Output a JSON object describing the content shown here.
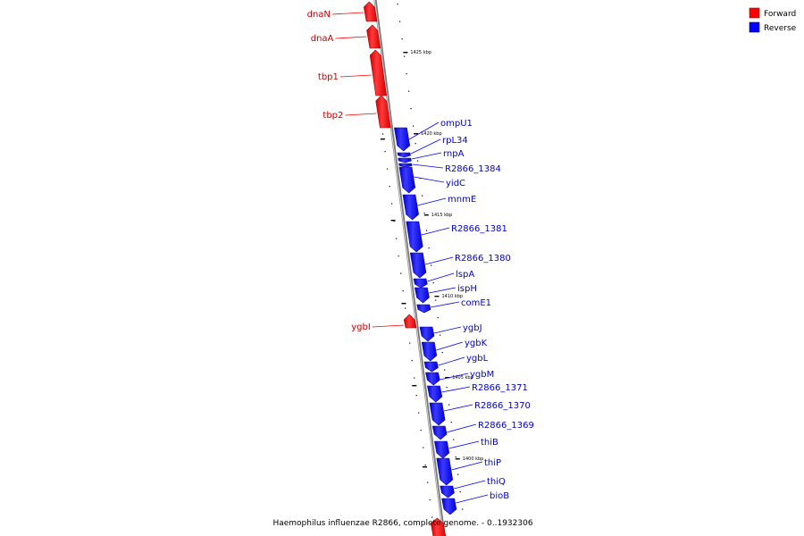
{
  "caption": "Haemophilus influenzae R2866, complete genome. - 0..1932306",
  "legend": [
    {
      "label": "Forward",
      "color": "#ff0000"
    },
    {
      "label": "Reverse",
      "color": "#0000ff"
    }
  ],
  "colors": {
    "forward": "#ff0000",
    "reverse": "#0000ff",
    "backbone": "#999999"
  },
  "ticks": [
    "1425 kbp",
    "1420 kbp",
    "1415 kbp",
    "1410 kbp",
    "1405 kbp",
    "1400 kbp"
  ],
  "forward_genes": [
    "dnaN",
    "dnaA",
    "tbp1",
    "tbp2",
    "ygbI"
  ],
  "reverse_genes": [
    "ompU1",
    "rpL34",
    "rnpA",
    "R2866_1384",
    "yidC",
    "mnmE",
    "R2866_1381",
    "R2866_1380",
    "lspA",
    "ispH",
    "comE1",
    "ygbJ",
    "ygbK",
    "ygbL",
    "ygbM",
    "R2866_1371",
    "R2866_1370",
    "R2866_1369",
    "thiB",
    "thiP",
    "thiQ",
    "bioB"
  ]
}
